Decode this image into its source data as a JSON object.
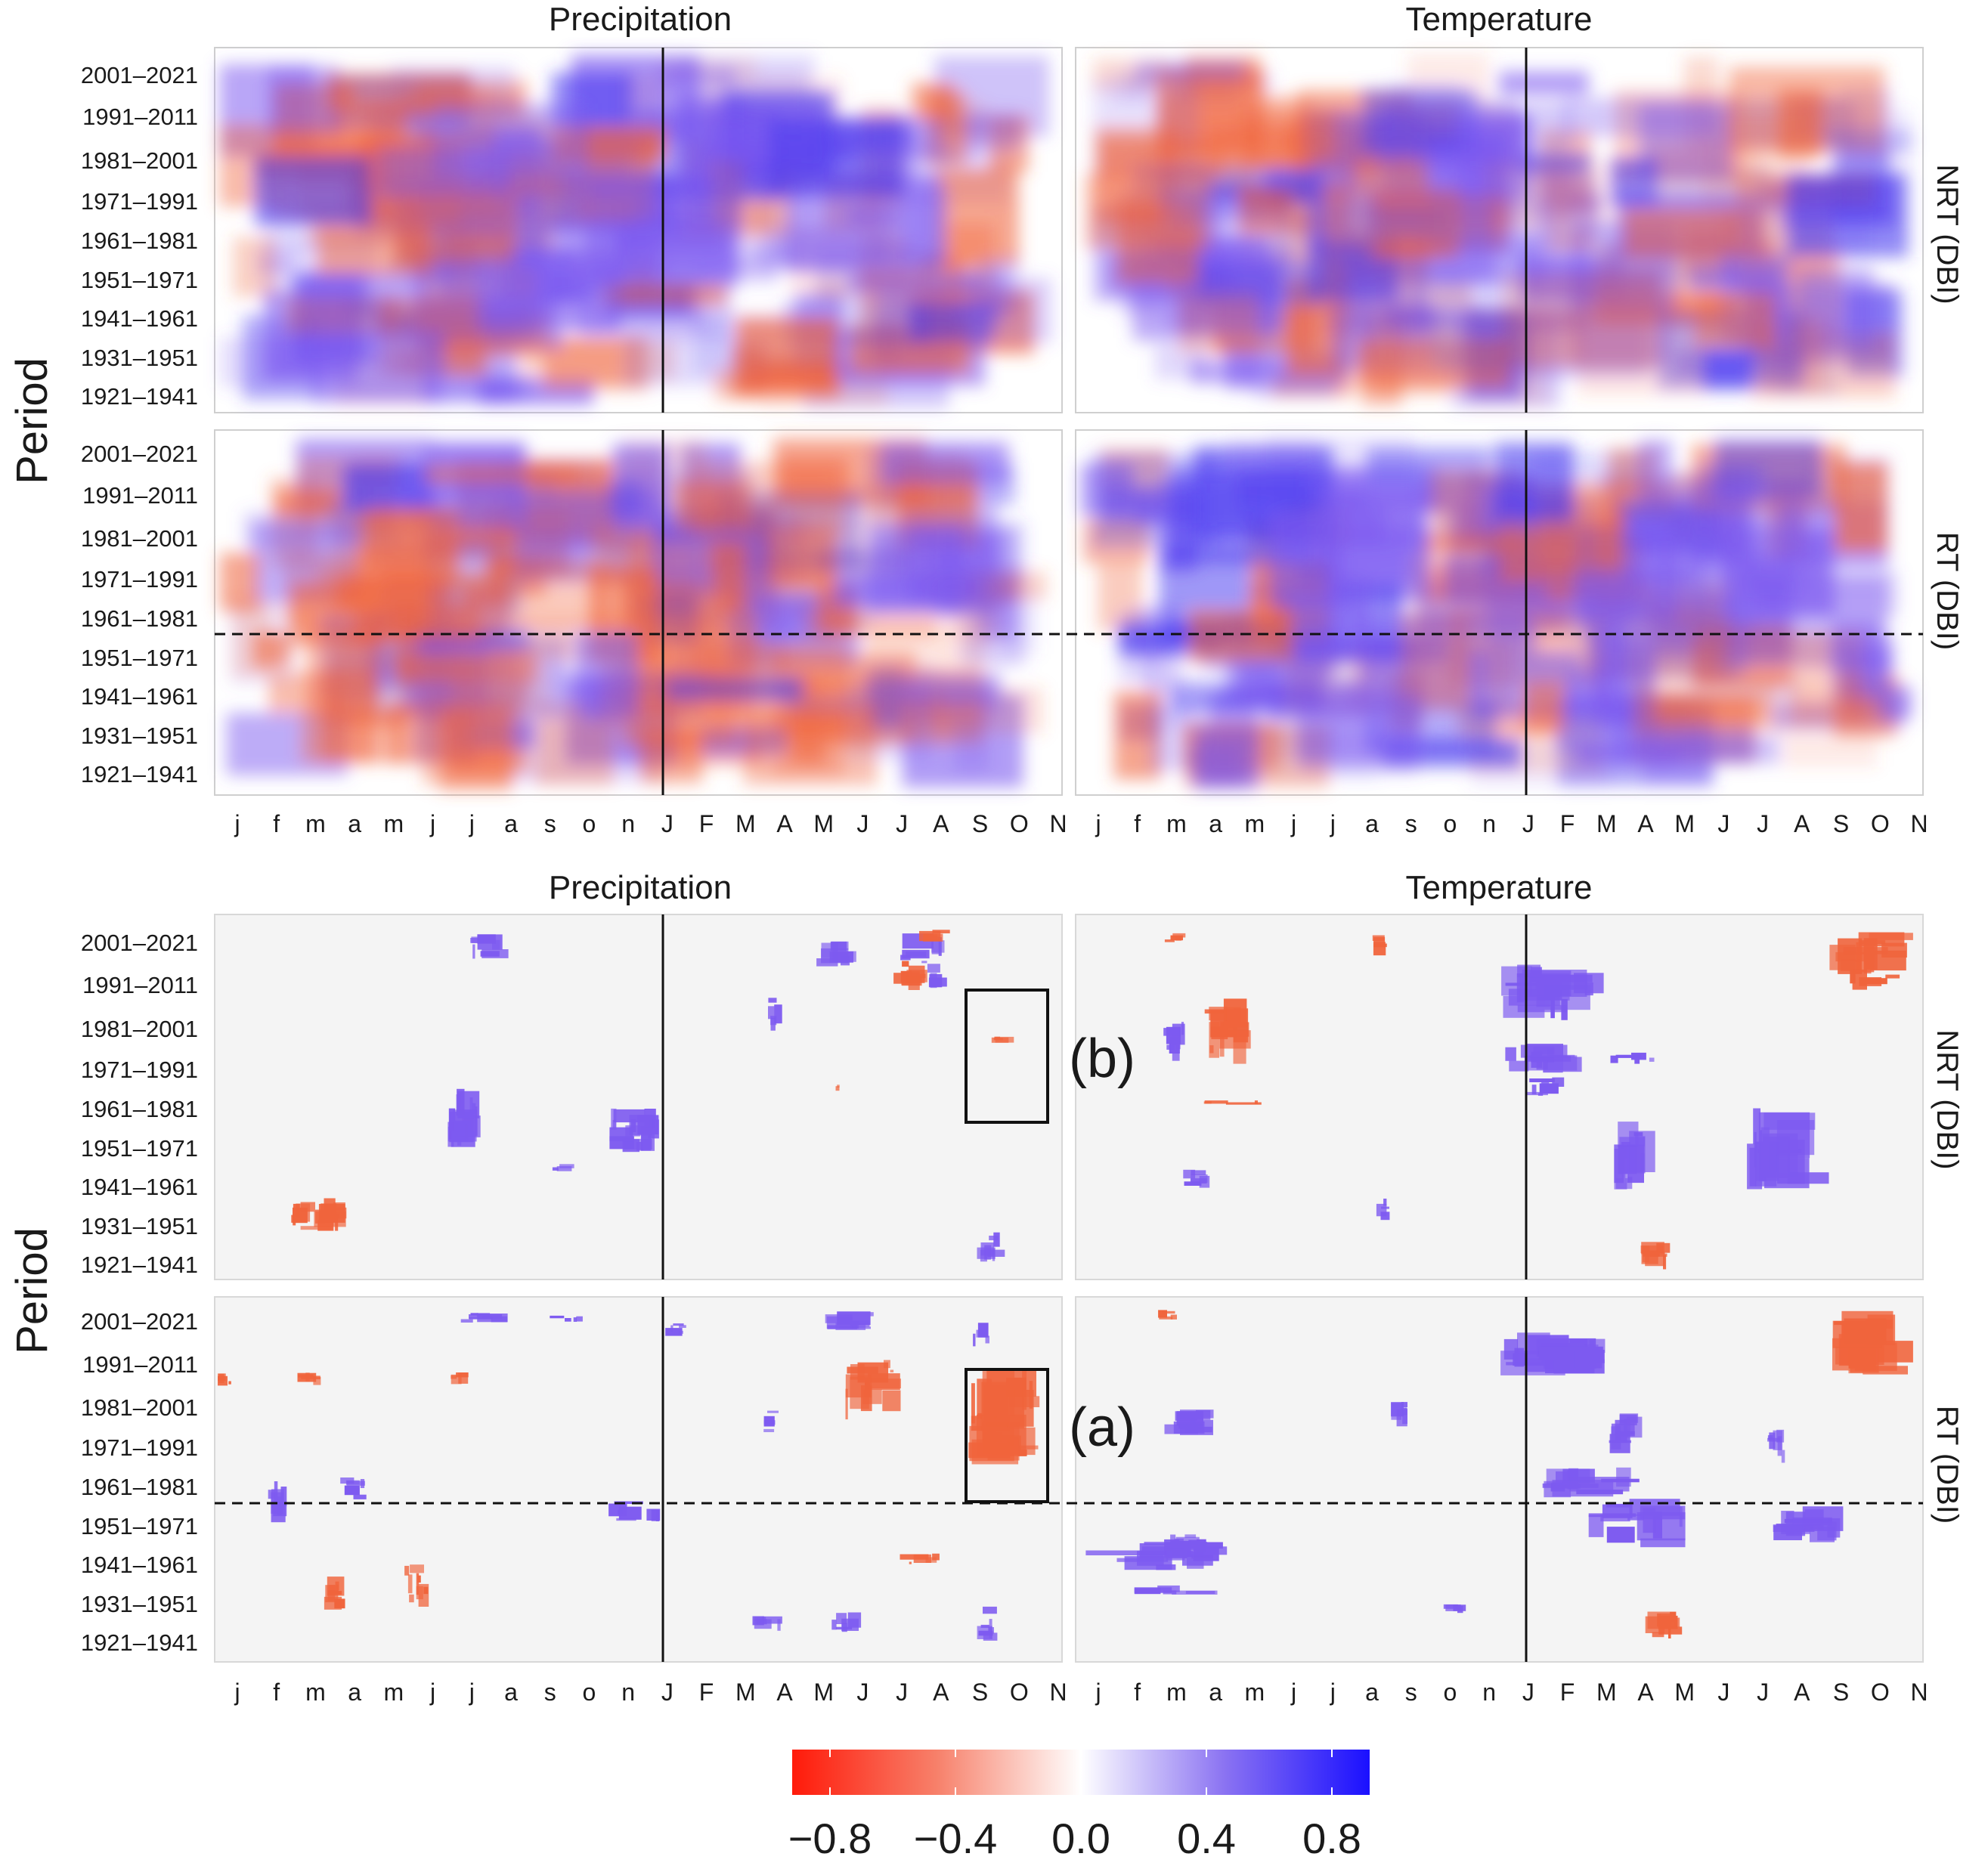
{
  "chart_data": {
    "type": "heatmap",
    "description_keys": "climate-growth correlation of tree rings (DBI) by period and month",
    "colorbar": {
      "min": -0.8,
      "max": 0.8,
      "ticks": [
        "−0.8",
        "−0.4",
        "0.0",
        "0.4",
        "0.8"
      ],
      "low_color": "#ff2a1a",
      "mid_color": "#ffffff",
      "high_color": "#1a1aff"
    },
    "month_ticks": [
      "j",
      "f",
      "m",
      "a",
      "m",
      "j",
      "j",
      "a",
      "s",
      "o",
      "n",
      "J",
      "F",
      "M",
      "A",
      "M",
      "J",
      "J",
      "A",
      "S",
      "O",
      "N"
    ],
    "period_labels": [
      "2001–2021",
      "1991–2011",
      "1981–2001",
      "1971–1991",
      "1961–1981",
      "1951–1971",
      "1941–1961",
      "1931–1951",
      "1921–1941"
    ],
    "blocks": [
      {
        "name": "all-correlations",
        "column_titles": [
          "Precipitation",
          "Temperature"
        ],
        "ylabel": "Period",
        "row_labels": [
          "NRT (DBI)",
          "RT (DBI)"
        ],
        "significant_only": false
      },
      {
        "name": "significant-correlations",
        "column_titles": [
          "Precipitation",
          "Temperature"
        ],
        "ylabel": "Period",
        "row_labels": [
          "NRT (DBI)",
          "RT (DBI)"
        ],
        "significant_only": true,
        "annotations": [
          "(b)",
          "(a)"
        ]
      }
    ]
  },
  "colors": {
    "panel_bg": "#f4f4f4",
    "red": "#f0643c",
    "blue": "#7d5af0"
  }
}
